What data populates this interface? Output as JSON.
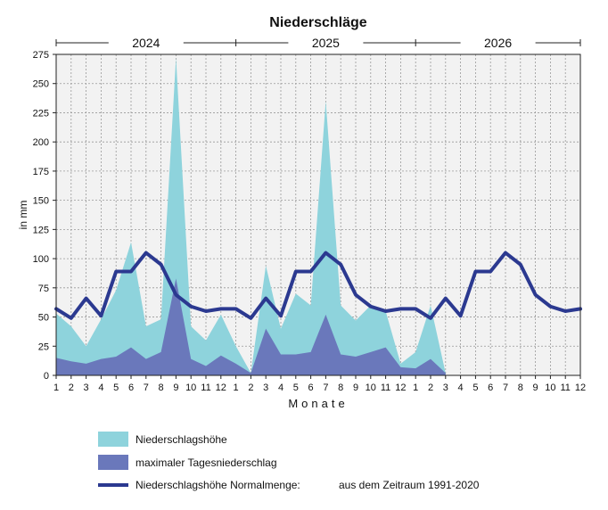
{
  "chart_data": {
    "type": "area",
    "title": "Niederschläge",
    "xlabel": "Monate",
    "ylabel": "in mm",
    "ylim": [
      0,
      275
    ],
    "yticks": [
      0,
      25,
      50,
      75,
      100,
      125,
      150,
      175,
      200,
      225,
      250,
      275
    ],
    "grid": true,
    "years": [
      "2024",
      "2025",
      "2026"
    ],
    "month_labels": [
      "1",
      "2",
      "3",
      "4",
      "5",
      "6",
      "7",
      "8",
      "9",
      "10",
      "11",
      "12",
      "1",
      "2",
      "3",
      "4",
      "5",
      "6",
      "7",
      "8",
      "9",
      "10",
      "11",
      "12",
      "1",
      "2",
      "3",
      "4",
      "5",
      "6",
      "7",
      "8",
      "9",
      "10",
      "11",
      "12"
    ],
    "series": [
      {
        "name": "Niederschlagshöhe",
        "color": "#8ed3dc",
        "kind": "area",
        "values": [
          53,
          42,
          25,
          48,
          73,
          114,
          42,
          48,
          272,
          42,
          30,
          52,
          25,
          2,
          94,
          40,
          70,
          60,
          235,
          60,
          47,
          60,
          55,
          10,
          20,
          60,
          2
        ]
      },
      {
        "name": "maximaler Tagesniederschlag",
        "color": "#6a78bb",
        "kind": "area",
        "values": [
          15,
          12,
          10,
          14,
          16,
          24,
          14,
          20,
          83,
          14,
          8,
          17,
          10,
          2,
          40,
          18,
          18,
          20,
          52,
          18,
          16,
          20,
          24,
          7,
          6,
          14,
          2
        ]
      },
      {
        "name": "Niederschlagshöhe Normalmenge:",
        "color": "#2b3990",
        "kind": "line",
        "values": [
          57,
          49,
          66,
          51,
          89,
          89,
          105,
          95,
          69,
          59,
          55,
          57,
          57,
          49,
          66,
          51,
          89,
          89,
          105,
          95,
          69,
          59,
          55,
          57,
          57,
          49,
          66,
          51,
          89,
          89,
          105,
          95,
          69,
          59,
          55,
          57
        ]
      }
    ],
    "legend_note": "aus dem Zeitraum 1991-2020",
    "legend_position": "bottom"
  }
}
